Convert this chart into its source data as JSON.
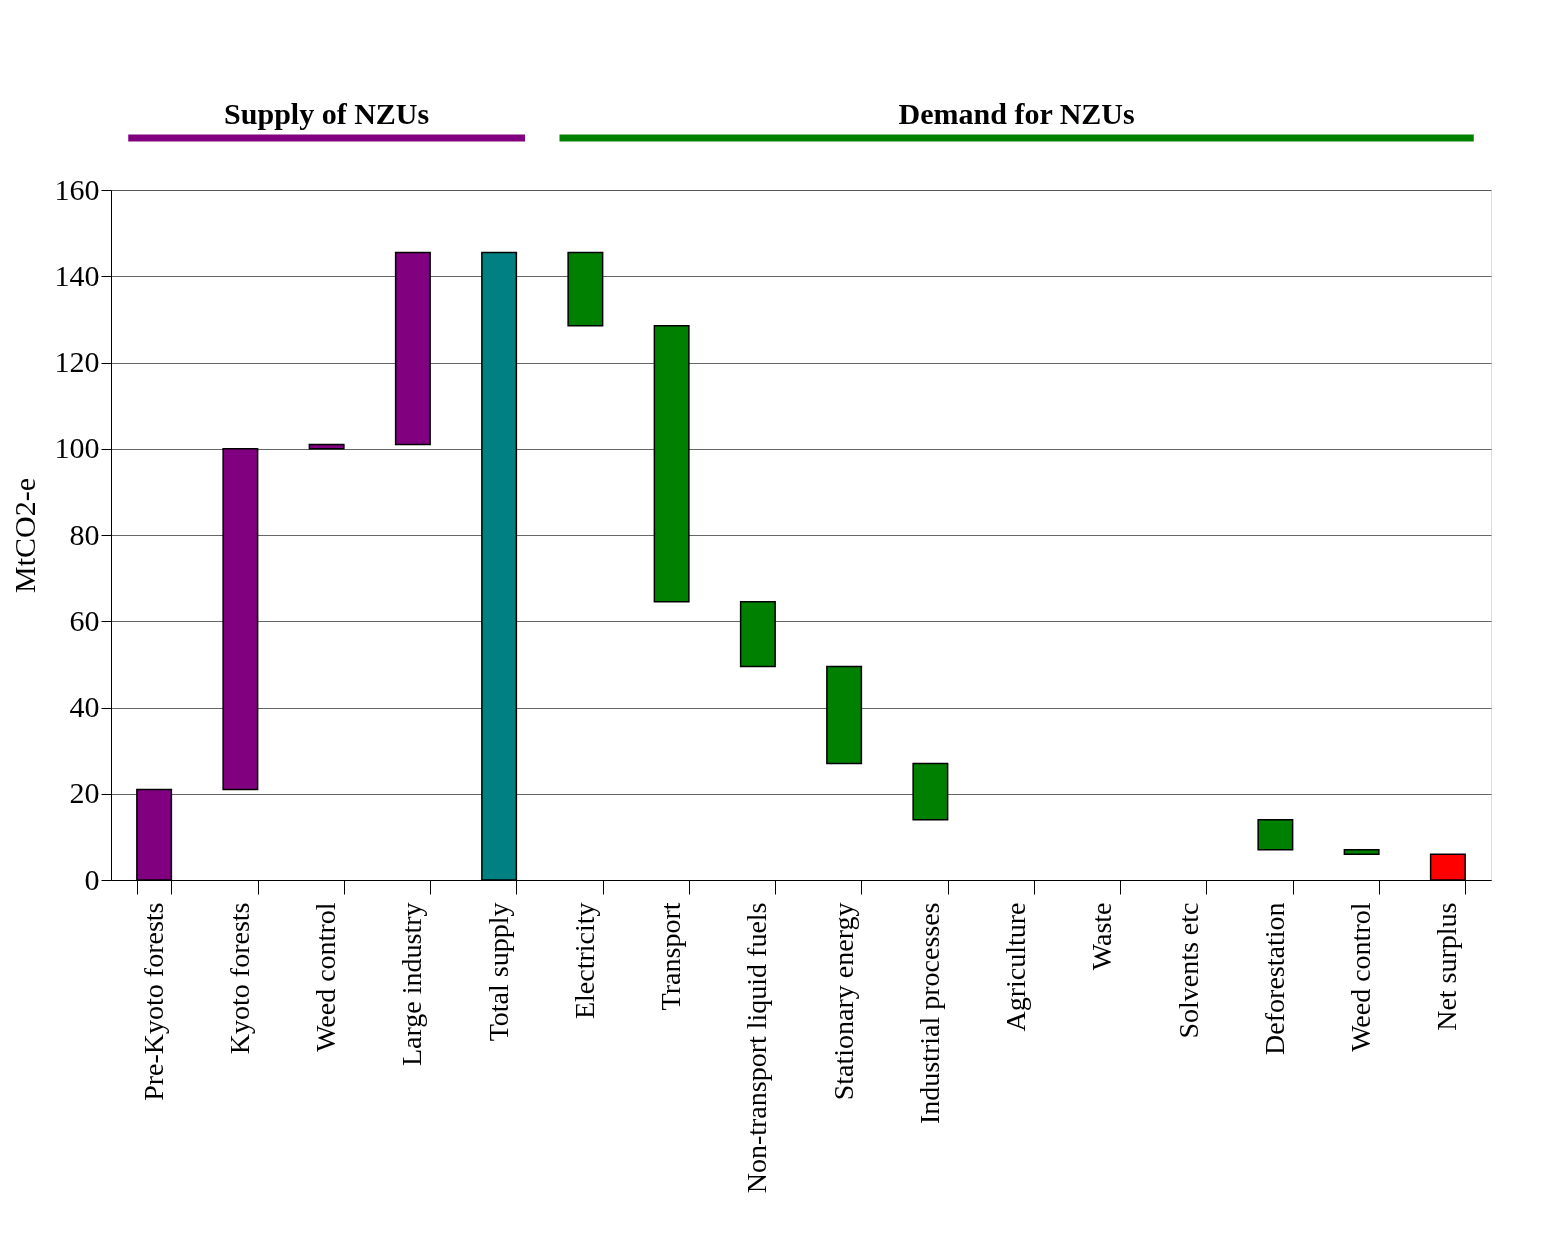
{
  "chart_data": {
    "type": "bar",
    "categories": [
      "Pre-Kyoto forests",
      "Kyoto forests",
      "Weed control",
      "Large industry",
      "Total supply",
      "Electricity",
      "Transport",
      "Non-transport liquid fuels",
      "Stationary energy",
      "Industrial processes",
      "Agriculture",
      "Waste",
      "Solvents etc",
      "Deforestation",
      "Weed control",
      "Net surplus"
    ],
    "values": [
      21,
      79,
      1,
      44.5,
      145.5,
      17,
      64,
      15,
      22.5,
      13,
      null,
      null,
      null,
      7,
      1,
      6
    ],
    "base": [
      0,
      21,
      100,
      101,
      0,
      128.5,
      64.5,
      49.5,
      27,
      14,
      null,
      null,
      null,
      7,
      6,
      0
    ],
    "colors": [
      "#800080",
      "#800080",
      "#800080",
      "#800080",
      "#008080",
      "#008000",
      "#008000",
      "#008000",
      "#008000",
      "#008000",
      "#008000",
      "#008000",
      "#008000",
      "#008000",
      "#008000",
      "#ff0000"
    ],
    "ylabel": "MtCO2-e",
    "ylim": [
      0,
      160
    ],
    "yticks": [
      0,
      20,
      40,
      60,
      80,
      100,
      120,
      140,
      160
    ],
    "grid": "y",
    "annotations": [
      "Supply of NZUs",
      "Demand for NZUs"
    ]
  }
}
